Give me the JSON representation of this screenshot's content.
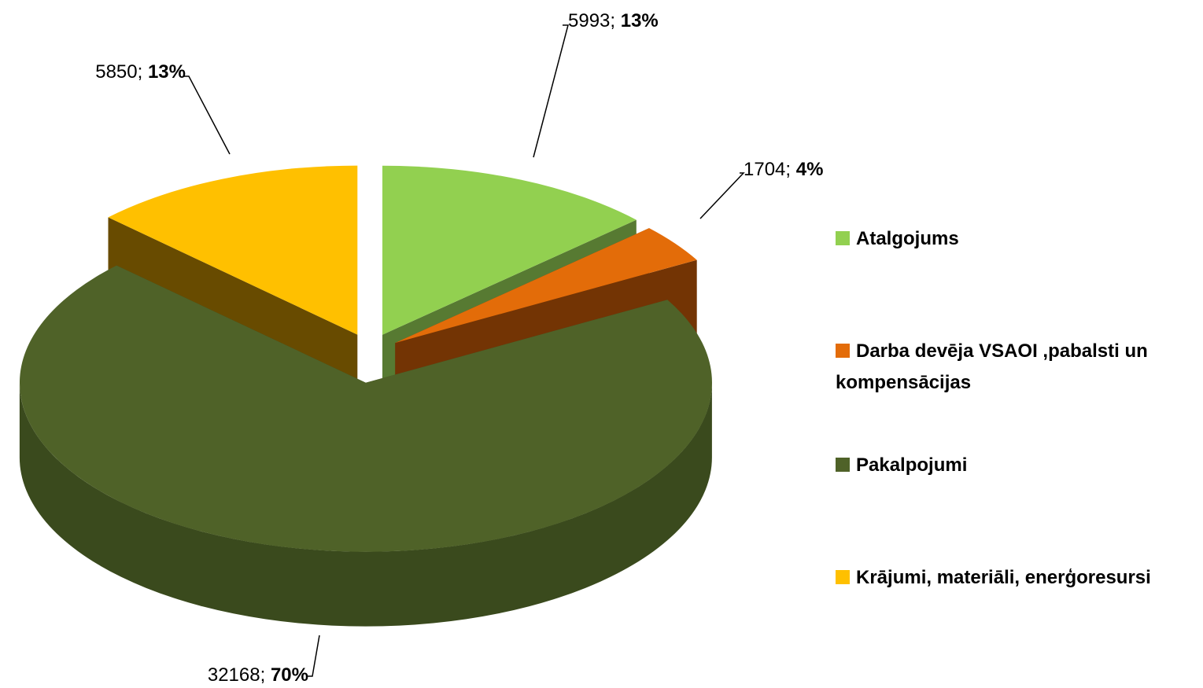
{
  "chart_data": {
    "type": "pie",
    "categories": [
      "Atalgojums",
      "Darba devēja VSAOI ,pabalsti un kompensācijas",
      "Pakalpojumi",
      "Krājumi, materiāli, enerģoresursi"
    ],
    "values": [
      5993,
      1704,
      32168,
      5850
    ],
    "percent_labels": [
      "13%",
      "4%",
      "70%",
      "13%"
    ],
    "label_separator": "; ",
    "colors": [
      "#92d050",
      "#e36c09",
      "#4f6228",
      "#ffc000"
    ],
    "side_colors": [
      "#577a32",
      "#733404",
      "#3a4a1d",
      "#684b00"
    ],
    "legend": "right"
  }
}
